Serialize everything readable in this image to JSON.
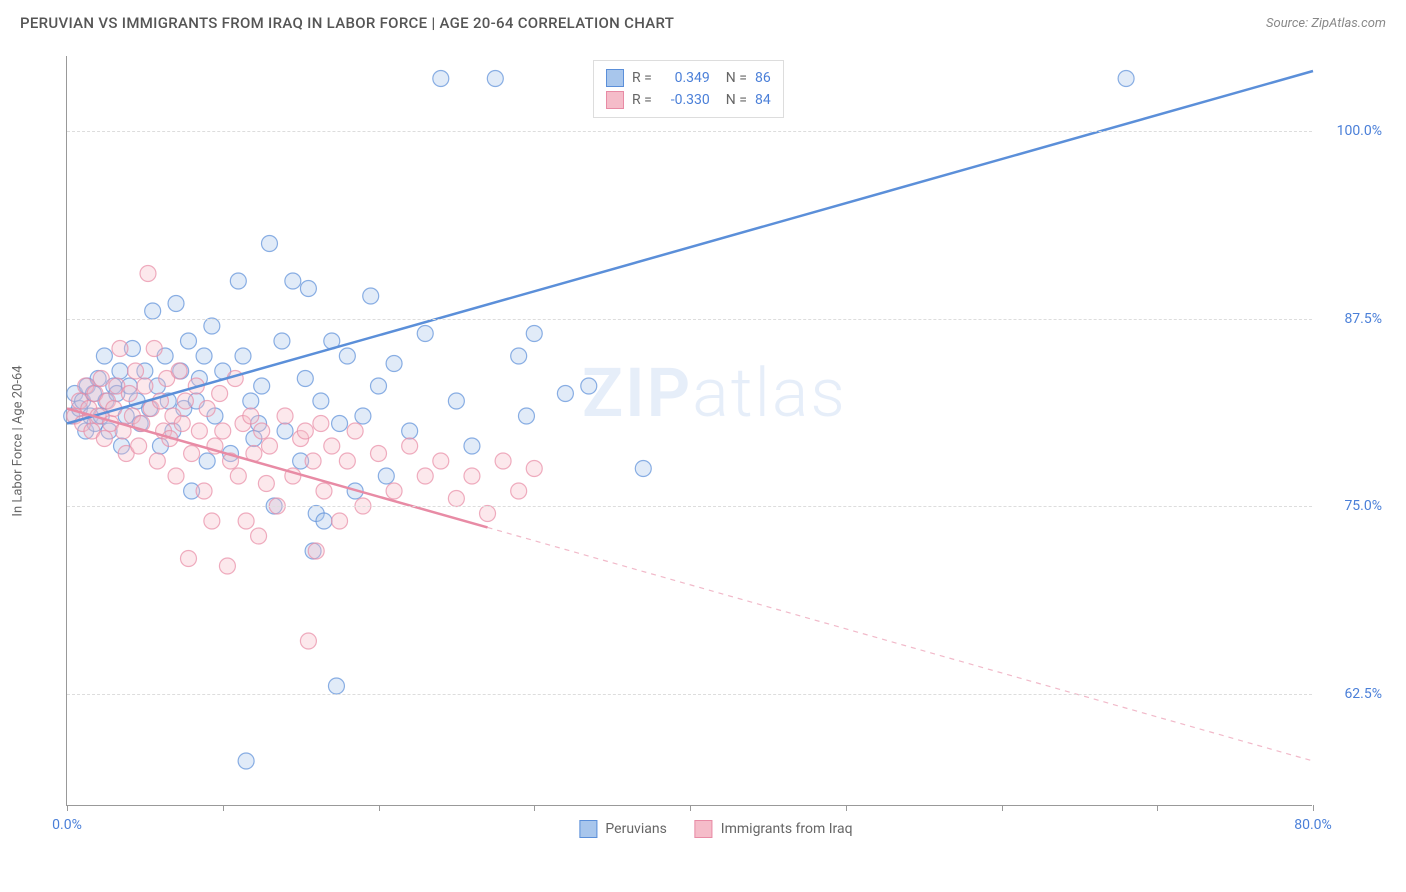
{
  "title": "PERUVIAN VS IMMIGRANTS FROM IRAQ IN LABOR FORCE | AGE 20-64 CORRELATION CHART",
  "source": "Source: ZipAtlas.com",
  "y_axis_label": "In Labor Force | Age 20-64",
  "watermark": {
    "bold": "ZIP",
    "light": "atlas"
  },
  "chart": {
    "type": "scatter-with-trendlines",
    "x_range": [
      0,
      80
    ],
    "y_range": [
      55,
      105
    ],
    "y_ticks": [
      62.5,
      75.0,
      87.5,
      100.0
    ],
    "y_tick_labels": [
      "62.5%",
      "75.0%",
      "87.5%",
      "100.0%"
    ],
    "x_ticks": [
      0,
      10,
      20,
      30,
      40,
      50,
      60,
      70,
      80
    ],
    "x_tick_labels": {
      "0": "0.0%",
      "80": "80.0%"
    },
    "grid_color": "#dddddd",
    "axis_color": "#999999",
    "background_color": "#ffffff",
    "marker_radius": 8,
    "marker_fill_opacity": 0.35,
    "marker_stroke_opacity": 0.7,
    "line_width": 2.5
  },
  "series": [
    {
      "name": "Peruvians",
      "color": "#5b8fd9",
      "fill": "#a8c6ec",
      "R": "0.349",
      "N": "86",
      "trend": {
        "x1": 0,
        "y1": 80.5,
        "x2": 80,
        "y2": 104,
        "dash_from_x": null
      },
      "points": [
        [
          0.3,
          81
        ],
        [
          0.5,
          82.5
        ],
        [
          0.8,
          81.5
        ],
        [
          1,
          82
        ],
        [
          1.2,
          80
        ],
        [
          1.3,
          83
        ],
        [
          1.5,
          81
        ],
        [
          1.7,
          82.5
        ],
        [
          1.8,
          80.5
        ],
        [
          2,
          83.5
        ],
        [
          2.2,
          81
        ],
        [
          2.4,
          85
        ],
        [
          2.5,
          82
        ],
        [
          2.7,
          80
        ],
        [
          3,
          83
        ],
        [
          3.2,
          82.5
        ],
        [
          3.4,
          84
        ],
        [
          3.5,
          79
        ],
        [
          3.8,
          81
        ],
        [
          4,
          83
        ],
        [
          4.2,
          85.5
        ],
        [
          4.5,
          82
        ],
        [
          4.7,
          80.5
        ],
        [
          5,
          84
        ],
        [
          5.3,
          81.5
        ],
        [
          5.5,
          88
        ],
        [
          5.8,
          83
        ],
        [
          6,
          79
        ],
        [
          6.3,
          85
        ],
        [
          6.5,
          82
        ],
        [
          6.8,
          80
        ],
        [
          7,
          88.5
        ],
        [
          7.3,
          84
        ],
        [
          7.5,
          81.5
        ],
        [
          7.8,
          86
        ],
        [
          8,
          76
        ],
        [
          8.3,
          82
        ],
        [
          8.5,
          83.5
        ],
        [
          8.8,
          85
        ],
        [
          9,
          78
        ],
        [
          9.3,
          87
        ],
        [
          9.5,
          81
        ],
        [
          10,
          84
        ],
        [
          10.5,
          78.5
        ],
        [
          11,
          90
        ],
        [
          11.3,
          85
        ],
        [
          11.5,
          58
        ],
        [
          11.8,
          82
        ],
        [
          12,
          79.5
        ],
        [
          12.3,
          80.5
        ],
        [
          12.5,
          83
        ],
        [
          13,
          92.5
        ],
        [
          13.3,
          75
        ],
        [
          13.8,
          86
        ],
        [
          14,
          80
        ],
        [
          14.5,
          90
        ],
        [
          15,
          78
        ],
        [
          15.3,
          83.5
        ],
        [
          15.5,
          89.5
        ],
        [
          15.8,
          72
        ],
        [
          16,
          74.5
        ],
        [
          16.3,
          82
        ],
        [
          16.5,
          74
        ],
        [
          17,
          86
        ],
        [
          17.3,
          63
        ],
        [
          17.5,
          80.5
        ],
        [
          18,
          85
        ],
        [
          18.5,
          76
        ],
        [
          19,
          81
        ],
        [
          19.5,
          89
        ],
        [
          20,
          83
        ],
        [
          20.5,
          77
        ],
        [
          21,
          84.5
        ],
        [
          22,
          80
        ],
        [
          23,
          86.5
        ],
        [
          24,
          103.5
        ],
        [
          25,
          82
        ],
        [
          26,
          79
        ],
        [
          27.5,
          103.5
        ],
        [
          29,
          85
        ],
        [
          29.5,
          81
        ],
        [
          30,
          86.5
        ],
        [
          32,
          82.5
        ],
        [
          33.5,
          83
        ],
        [
          37,
          77.5
        ],
        [
          68,
          103.5
        ]
      ]
    },
    {
      "name": "Immigrants from Iraq",
      "color": "#e88ba5",
      "fill": "#f5bcc9",
      "R": "-0.330",
      "N": "84",
      "trend": {
        "x1": 0,
        "y1": 81.5,
        "x2": 80,
        "y2": 58,
        "dash_from_x": 27
      },
      "points": [
        [
          0.5,
          81
        ],
        [
          0.8,
          82
        ],
        [
          1,
          80.5
        ],
        [
          1.2,
          83
        ],
        [
          1.4,
          81.5
        ],
        [
          1.6,
          80
        ],
        [
          1.8,
          82.5
        ],
        [
          2,
          81
        ],
        [
          2.2,
          83.5
        ],
        [
          2.4,
          79.5
        ],
        [
          2.6,
          82
        ],
        [
          2.8,
          80.5
        ],
        [
          3,
          81.5
        ],
        [
          3.2,
          83
        ],
        [
          3.4,
          85.5
        ],
        [
          3.6,
          80
        ],
        [
          3.8,
          78.5
        ],
        [
          4,
          82.5
        ],
        [
          4.2,
          81
        ],
        [
          4.4,
          84
        ],
        [
          4.6,
          79
        ],
        [
          4.8,
          80.5
        ],
        [
          5,
          83
        ],
        [
          5.2,
          90.5
        ],
        [
          5.4,
          81.5
        ],
        [
          5.6,
          85.5
        ],
        [
          5.8,
          78
        ],
        [
          6,
          82
        ],
        [
          6.2,
          80
        ],
        [
          6.4,
          83.5
        ],
        [
          6.6,
          79.5
        ],
        [
          6.8,
          81
        ],
        [
          7,
          77
        ],
        [
          7.2,
          84
        ],
        [
          7.4,
          80.5
        ],
        [
          7.6,
          82
        ],
        [
          7.8,
          71.5
        ],
        [
          8,
          78.5
        ],
        [
          8.3,
          83
        ],
        [
          8.5,
          80
        ],
        [
          8.8,
          76
        ],
        [
          9,
          81.5
        ],
        [
          9.3,
          74
        ],
        [
          9.5,
          79
        ],
        [
          9.8,
          82.5
        ],
        [
          10,
          80
        ],
        [
          10.3,
          71
        ],
        [
          10.5,
          78
        ],
        [
          10.8,
          83.5
        ],
        [
          11,
          77
        ],
        [
          11.3,
          80.5
        ],
        [
          11.5,
          74
        ],
        [
          11.8,
          81
        ],
        [
          12,
          78.5
        ],
        [
          12.3,
          73
        ],
        [
          12.5,
          80
        ],
        [
          12.8,
          76.5
        ],
        [
          13,
          79
        ],
        [
          13.5,
          75
        ],
        [
          14,
          81
        ],
        [
          14.5,
          77
        ],
        [
          15,
          79.5
        ],
        [
          15.3,
          80
        ],
        [
          15.5,
          66
        ],
        [
          15.8,
          78
        ],
        [
          16,
          72
        ],
        [
          16.3,
          80.5
        ],
        [
          16.5,
          76
        ],
        [
          17,
          79
        ],
        [
          17.5,
          74
        ],
        [
          18,
          78
        ],
        [
          18.5,
          80
        ],
        [
          19,
          75
        ],
        [
          20,
          78.5
        ],
        [
          21,
          76
        ],
        [
          22,
          79
        ],
        [
          23,
          77
        ],
        [
          24,
          78
        ],
        [
          25,
          75.5
        ],
        [
          26,
          77
        ],
        [
          27,
          74.5
        ],
        [
          28,
          78
        ],
        [
          29,
          76
        ],
        [
          30,
          77.5
        ]
      ]
    }
  ],
  "legend_top_labels": {
    "R_prefix": "R =",
    "N_prefix": "N ="
  },
  "legend_bottom": [
    {
      "label": "Peruvians",
      "color": "#5b8fd9",
      "fill": "#a8c6ec"
    },
    {
      "label": "Immigrants from Iraq",
      "color": "#e88ba5",
      "fill": "#f5bcc9"
    }
  ]
}
